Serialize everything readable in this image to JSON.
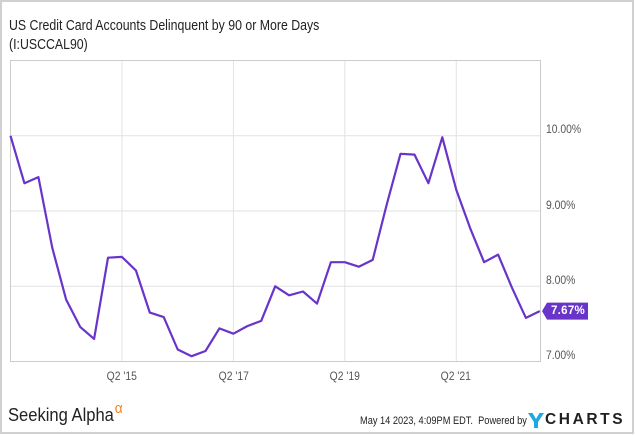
{
  "header": {
    "title_line1": "US Credit Card Accounts Delinquent by 90 or More Days",
    "title_line2": "(I:USCCAL90)"
  },
  "footer": {
    "brand": "Seeking Alpha",
    "brand_mark": "α",
    "timestamp": "May 14 2023, 4:09PM EDT.",
    "powered_by": "Powered by",
    "provider_y": "Y",
    "provider_rest": "CHARTS"
  },
  "colors": {
    "series": "#6934c9",
    "grid": "#e2e2e2",
    "axis": "#cccccc",
    "brand_alpha": "#f58220",
    "ycharts_blue": "#1ea7e1"
  },
  "chart_data": {
    "type": "line",
    "title": "US Credit Card Accounts Delinquent by 90 or More Days (I:USCCAL90)",
    "xlabel": "",
    "ylabel": "",
    "ylim": [
      7,
      11
    ],
    "grid": true,
    "legend": null,
    "x": [
      "Q2 '13",
      "Q3 '13",
      "Q4 '13",
      "Q1 '14",
      "Q2 '14",
      "Q3 '14",
      "Q4 '14",
      "Q1 '15",
      "Q2 '15",
      "Q3 '15",
      "Q4 '15",
      "Q1 '16",
      "Q2 '16",
      "Q3 '16",
      "Q4 '16",
      "Q1 '17",
      "Q2 '17",
      "Q3 '17",
      "Q4 '17",
      "Q1 '18",
      "Q2 '18",
      "Q3 '18",
      "Q4 '18",
      "Q1 '19",
      "Q2 '19",
      "Q3 '19",
      "Q4 '19",
      "Q1 '20",
      "Q2 '20",
      "Q3 '20",
      "Q4 '20",
      "Q1 '21",
      "Q2 '21",
      "Q3 '21",
      "Q4 '21",
      "Q1 '22",
      "Q2 '22",
      "Q3 '22",
      "Q4 '22"
    ],
    "series": [
      {
        "name": "US Credit Card Accounts Delinquent by 90 or More Days",
        "unit": "%",
        "values": [
          10.0,
          9.37,
          9.45,
          8.51,
          7.82,
          7.46,
          7.3,
          8.38,
          8.39,
          8.21,
          7.65,
          7.59,
          7.16,
          7.07,
          7.14,
          7.44,
          7.37,
          7.47,
          7.54,
          8.0,
          7.88,
          7.93,
          7.77,
          8.32,
          8.32,
          8.26,
          8.35,
          9.08,
          9.76,
          9.75,
          9.37,
          9.98,
          9.28,
          8.77,
          8.32,
          8.42,
          7.98,
          7.58,
          7.67
        ]
      }
    ],
    "last_value_label": "7.67%",
    "yticks": [
      {
        "value": 10,
        "label": "10.00%"
      },
      {
        "value": 9,
        "label": "9.00%"
      },
      {
        "value": 8,
        "label": "8.00%"
      },
      {
        "value": 7,
        "label": "7.00%"
      }
    ],
    "xticks": [
      {
        "index": 8,
        "label": "Q2 '15"
      },
      {
        "index": 16,
        "label": "Q2 '17"
      },
      {
        "index": 24,
        "label": "Q2 '19"
      },
      {
        "index": 32,
        "label": "Q2 '21"
      }
    ]
  }
}
